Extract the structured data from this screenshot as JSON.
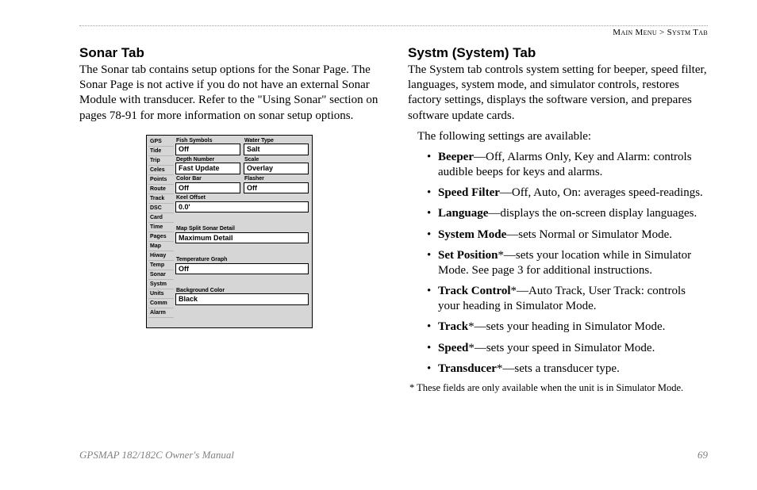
{
  "breadcrumb": {
    "left": "Main Menu",
    "sep": " > ",
    "right": "Systm Tab"
  },
  "left": {
    "heading": "Sonar Tab",
    "para": "The Sonar tab contains setup options for the Sonar Page. The Sonar Page is not active if you do not have an external Sonar Module with transducer. Refer to the \"Using Sonar\" section on pages 78-91 for more information on sonar setup options."
  },
  "right": {
    "heading": "Systm (System) Tab",
    "para": "The System tab controls system setting for beeper, speed filter, languages, system mode, and simulator controls, restores factory settings, displays the software version, and prepares software update cards.",
    "intro": "The following settings are available:",
    "items": [
      {
        "term": "Beeper",
        "star": "",
        "desc": "—Off, Alarms Only, Key and Alarm: controls audible beeps for keys and alarms."
      },
      {
        "term": "Speed Filter",
        "star": "",
        "desc": "—Off, Auto, On: averages speed-readings."
      },
      {
        "term": "Language",
        "star": "",
        "desc": "—displays the on-screen display languages."
      },
      {
        "term": "System Mode",
        "star": "",
        "desc": "—sets Normal or Simulator Mode."
      },
      {
        "term": "Set Position",
        "star": "*",
        "desc": "—sets your location while in Simulator Mode. See page 3 for additional instructions."
      },
      {
        "term": "Track Control",
        "star": "*",
        "desc": "—Auto Track, User Track: controls your heading in Simulator Mode."
      },
      {
        "term": "Track",
        "star": "*",
        "desc": "—sets your heading in Simulator Mode."
      },
      {
        "term": "Speed",
        "star": "*",
        "desc": "—sets your speed in Simulator Mode."
      },
      {
        "term": "Transducer",
        "star": "*",
        "desc": "—sets a transducer type."
      }
    ],
    "footnote": "* These fields are only available when the unit is in Simulator Mode."
  },
  "footer": {
    "manual": "GPSMAP 182/182C Owner's Manual",
    "page": "69"
  },
  "screenshot": {
    "tabs": [
      "GPS",
      "Tide",
      "Trip",
      "Celes",
      "Points",
      "Route",
      "Track",
      "DSC",
      "Card",
      "Time",
      "Pages",
      "Map",
      "Hiway",
      "Temp",
      "Sonar",
      "Systm",
      "Units",
      "Comm",
      "Alarm"
    ],
    "rows": [
      {
        "type": "pair",
        "a": {
          "lbl": "Fish Symbols",
          "val": "Off"
        },
        "b": {
          "lbl": "Water Type",
          "val": "Salt"
        }
      },
      {
        "type": "pair",
        "a": {
          "lbl": "Depth Number",
          "val": "Fast Update"
        },
        "b": {
          "lbl": "Scale",
          "val": "Overlay"
        }
      },
      {
        "type": "pair",
        "a": {
          "lbl": "Color Bar",
          "val": "Off"
        },
        "b": {
          "lbl": "Flasher",
          "val": "Off"
        }
      },
      {
        "type": "full",
        "lbl": "Keel Offset",
        "val": "0.0'"
      },
      {
        "type": "full",
        "lbl": "Map Split Sonar Detail",
        "val": "Maximum Detail"
      },
      {
        "type": "full",
        "lbl": "Temperature Graph",
        "val": "Off"
      },
      {
        "type": "full",
        "lbl": "Background Color",
        "val": "Black"
      }
    ]
  }
}
